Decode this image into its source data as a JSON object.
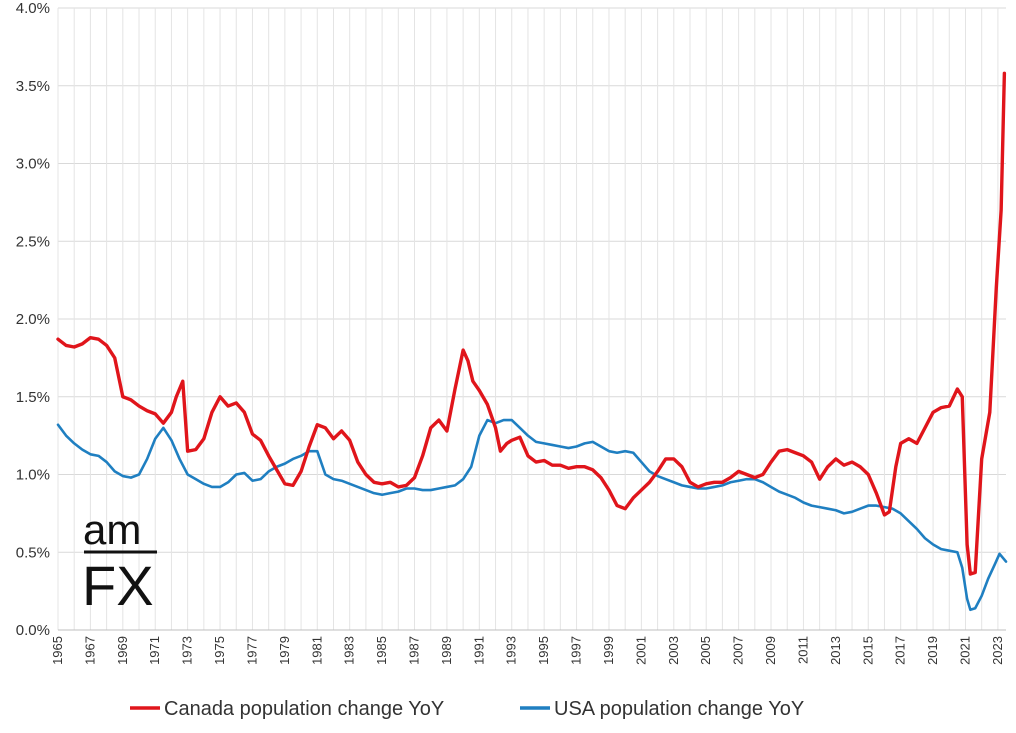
{
  "logo": {
    "top": "am",
    "bottom": "FX"
  },
  "chart_data": {
    "type": "line",
    "title": "",
    "xlabel": "",
    "ylabel": "",
    "xlim": [
      1965,
      2023.5
    ],
    "ylim": [
      0,
      4.0
    ],
    "yticks": [
      0,
      0.5,
      1.0,
      1.5,
      2.0,
      2.5,
      3.0,
      3.5,
      4.0
    ],
    "ytick_labels": [
      "0.0%",
      "0.5%",
      "1.0%",
      "1.5%",
      "2.0%",
      "2.5%",
      "3.0%",
      "3.5%",
      "4.0%"
    ],
    "xticks": [
      1965,
      1967,
      1969,
      1971,
      1973,
      1975,
      1977,
      1979,
      1981,
      1983,
      1985,
      1987,
      1989,
      1991,
      1993,
      1995,
      1997,
      1999,
      2001,
      2003,
      2005,
      2007,
      2009,
      2011,
      2013,
      2015,
      2017,
      2019,
      2021,
      2023
    ],
    "xtick_labels": [
      "1965",
      "1967",
      "1969",
      "1971",
      "1973",
      "1975",
      "1977",
      "1979",
      "1981",
      "1983",
      "1985",
      "1987",
      "1989",
      "1991",
      "1993",
      "1995",
      "1997",
      "1999",
      "2001",
      "2003",
      "2005",
      "2007",
      "2009",
      "2011",
      "2013",
      "2015",
      "2017",
      "2019",
      "2021",
      "2023"
    ],
    "grid": true,
    "legend_position": "bottom",
    "series": [
      {
        "name": "Canada population change YoY",
        "color": "#e0151b",
        "points": [
          [
            1965.0,
            1.87
          ],
          [
            1965.5,
            1.83
          ],
          [
            1966.0,
            1.82
          ],
          [
            1966.5,
            1.84
          ],
          [
            1967.0,
            1.88
          ],
          [
            1967.5,
            1.87
          ],
          [
            1968.0,
            1.83
          ],
          [
            1968.5,
            1.75
          ],
          [
            1969.0,
            1.5
          ],
          [
            1969.5,
            1.48
          ],
          [
            1970.0,
            1.44
          ],
          [
            1970.5,
            1.41
          ],
          [
            1971.0,
            1.39
          ],
          [
            1971.5,
            1.33
          ],
          [
            1972.0,
            1.4
          ],
          [
            1972.3,
            1.5
          ],
          [
            1972.7,
            1.6
          ],
          [
            1973.0,
            1.15
          ],
          [
            1973.5,
            1.16
          ],
          [
            1974.0,
            1.23
          ],
          [
            1974.5,
            1.4
          ],
          [
            1975.0,
            1.5
          ],
          [
            1975.5,
            1.44
          ],
          [
            1976.0,
            1.46
          ],
          [
            1976.5,
            1.4
          ],
          [
            1977.0,
            1.26
          ],
          [
            1977.5,
            1.22
          ],
          [
            1978.0,
            1.12
          ],
          [
            1978.5,
            1.03
          ],
          [
            1979.0,
            0.94
          ],
          [
            1979.5,
            0.93
          ],
          [
            1980.0,
            1.02
          ],
          [
            1980.5,
            1.18
          ],
          [
            1981.0,
            1.32
          ],
          [
            1981.5,
            1.3
          ],
          [
            1982.0,
            1.23
          ],
          [
            1982.5,
            1.28
          ],
          [
            1983.0,
            1.22
          ],
          [
            1983.5,
            1.08
          ],
          [
            1984.0,
            1.0
          ],
          [
            1984.5,
            0.95
          ],
          [
            1985.0,
            0.94
          ],
          [
            1985.5,
            0.95
          ],
          [
            1986.0,
            0.92
          ],
          [
            1986.5,
            0.93
          ],
          [
            1987.0,
            0.98
          ],
          [
            1987.5,
            1.12
          ],
          [
            1988.0,
            1.3
          ],
          [
            1988.5,
            1.35
          ],
          [
            1989.0,
            1.28
          ],
          [
            1989.5,
            1.55
          ],
          [
            1990.0,
            1.8
          ],
          [
            1990.3,
            1.73
          ],
          [
            1990.6,
            1.6
          ],
          [
            1991.0,
            1.54
          ],
          [
            1991.5,
            1.45
          ],
          [
            1992.0,
            1.3
          ],
          [
            1992.3,
            1.15
          ],
          [
            1992.7,
            1.2
          ],
          [
            1993.0,
            1.22
          ],
          [
            1993.5,
            1.24
          ],
          [
            1994.0,
            1.12
          ],
          [
            1994.5,
            1.08
          ],
          [
            1995.0,
            1.09
          ],
          [
            1995.5,
            1.06
          ],
          [
            1996.0,
            1.06
          ],
          [
            1996.5,
            1.04
          ],
          [
            1997.0,
            1.05
          ],
          [
            1997.5,
            1.05
          ],
          [
            1998.0,
            1.03
          ],
          [
            1998.5,
            0.98
          ],
          [
            1999.0,
            0.9
          ],
          [
            1999.5,
            0.8
          ],
          [
            2000.0,
            0.78
          ],
          [
            2000.5,
            0.85
          ],
          [
            2001.0,
            0.9
          ],
          [
            2001.5,
            0.95
          ],
          [
            2002.0,
            1.02
          ],
          [
            2002.5,
            1.1
          ],
          [
            2003.0,
            1.1
          ],
          [
            2003.5,
            1.05
          ],
          [
            2004.0,
            0.95
          ],
          [
            2004.5,
            0.92
          ],
          [
            2005.0,
            0.94
          ],
          [
            2005.5,
            0.95
          ],
          [
            2006.0,
            0.95
          ],
          [
            2006.5,
            0.98
          ],
          [
            2007.0,
            1.02
          ],
          [
            2007.5,
            1.0
          ],
          [
            2008.0,
            0.98
          ],
          [
            2008.5,
            1.0
          ],
          [
            2009.0,
            1.08
          ],
          [
            2009.5,
            1.15
          ],
          [
            2010.0,
            1.16
          ],
          [
            2010.5,
            1.14
          ],
          [
            2011.0,
            1.12
          ],
          [
            2011.5,
            1.08
          ],
          [
            2012.0,
            0.97
          ],
          [
            2012.5,
            1.05
          ],
          [
            2013.0,
            1.1
          ],
          [
            2013.5,
            1.06
          ],
          [
            2014.0,
            1.08
          ],
          [
            2014.5,
            1.05
          ],
          [
            2015.0,
            1.0
          ],
          [
            2015.5,
            0.88
          ],
          [
            2016.0,
            0.74
          ],
          [
            2016.3,
            0.76
          ],
          [
            2016.7,
            1.05
          ],
          [
            2017.0,
            1.2
          ],
          [
            2017.5,
            1.23
          ],
          [
            2018.0,
            1.2
          ],
          [
            2018.5,
            1.3
          ],
          [
            2019.0,
            1.4
          ],
          [
            2019.5,
            1.43
          ],
          [
            2020.0,
            1.44
          ],
          [
            2020.5,
            1.55
          ],
          [
            2020.8,
            1.5
          ],
          [
            2021.1,
            0.55
          ],
          [
            2021.3,
            0.36
          ],
          [
            2021.6,
            0.37
          ],
          [
            2022.0,
            1.1
          ],
          [
            2022.5,
            1.4
          ],
          [
            2022.9,
            2.2
          ],
          [
            2023.2,
            2.7
          ],
          [
            2023.4,
            3.58
          ]
        ]
      },
      {
        "name": "USA population change YoY",
        "color": "#1f7fc1",
        "points": [
          [
            1965.0,
            1.32
          ],
          [
            1965.5,
            1.25
          ],
          [
            1966.0,
            1.2
          ],
          [
            1966.5,
            1.16
          ],
          [
            1967.0,
            1.13
          ],
          [
            1967.5,
            1.12
          ],
          [
            1968.0,
            1.08
          ],
          [
            1968.5,
            1.02
          ],
          [
            1969.0,
            0.99
          ],
          [
            1969.5,
            0.98
          ],
          [
            1970.0,
            1.0
          ],
          [
            1970.5,
            1.1
          ],
          [
            1971.0,
            1.23
          ],
          [
            1971.5,
            1.3
          ],
          [
            1972.0,
            1.22
          ],
          [
            1972.5,
            1.1
          ],
          [
            1973.0,
            1.0
          ],
          [
            1973.5,
            0.97
          ],
          [
            1974.0,
            0.94
          ],
          [
            1974.5,
            0.92
          ],
          [
            1975.0,
            0.92
          ],
          [
            1975.5,
            0.95
          ],
          [
            1976.0,
            1.0
          ],
          [
            1976.5,
            1.01
          ],
          [
            1977.0,
            0.96
          ],
          [
            1977.5,
            0.97
          ],
          [
            1978.0,
            1.02
          ],
          [
            1978.5,
            1.05
          ],
          [
            1979.0,
            1.07
          ],
          [
            1979.5,
            1.1
          ],
          [
            1980.0,
            1.12
          ],
          [
            1980.5,
            1.15
          ],
          [
            1981.0,
            1.15
          ],
          [
            1981.5,
            1.0
          ],
          [
            1982.0,
            0.97
          ],
          [
            1982.5,
            0.96
          ],
          [
            1983.0,
            0.94
          ],
          [
            1983.5,
            0.92
          ],
          [
            1984.0,
            0.9
          ],
          [
            1984.5,
            0.88
          ],
          [
            1985.0,
            0.87
          ],
          [
            1985.5,
            0.88
          ],
          [
            1986.0,
            0.89
          ],
          [
            1986.5,
            0.91
          ],
          [
            1987.0,
            0.91
          ],
          [
            1987.5,
            0.9
          ],
          [
            1988.0,
            0.9
          ],
          [
            1988.5,
            0.91
          ],
          [
            1989.0,
            0.92
          ],
          [
            1989.5,
            0.93
          ],
          [
            1990.0,
            0.97
          ],
          [
            1990.5,
            1.05
          ],
          [
            1991.0,
            1.25
          ],
          [
            1991.5,
            1.35
          ],
          [
            1992.0,
            1.33
          ],
          [
            1992.5,
            1.35
          ],
          [
            1993.0,
            1.35
          ],
          [
            1993.5,
            1.3
          ],
          [
            1994.0,
            1.25
          ],
          [
            1994.5,
            1.21
          ],
          [
            1995.0,
            1.2
          ],
          [
            1995.5,
            1.19
          ],
          [
            1996.0,
            1.18
          ],
          [
            1996.5,
            1.17
          ],
          [
            1997.0,
            1.18
          ],
          [
            1997.5,
            1.2
          ],
          [
            1998.0,
            1.21
          ],
          [
            1998.5,
            1.18
          ],
          [
            1999.0,
            1.15
          ],
          [
            1999.5,
            1.14
          ],
          [
            2000.0,
            1.15
          ],
          [
            2000.5,
            1.14
          ],
          [
            2001.0,
            1.08
          ],
          [
            2001.5,
            1.02
          ],
          [
            2002.0,
            0.99
          ],
          [
            2002.5,
            0.97
          ],
          [
            2003.0,
            0.95
          ],
          [
            2003.5,
            0.93
          ],
          [
            2004.0,
            0.92
          ],
          [
            2004.5,
            0.91
          ],
          [
            2005.0,
            0.91
          ],
          [
            2005.5,
            0.92
          ],
          [
            2006.0,
            0.93
          ],
          [
            2006.5,
            0.95
          ],
          [
            2007.0,
            0.96
          ],
          [
            2007.5,
            0.97
          ],
          [
            2008.0,
            0.97
          ],
          [
            2008.5,
            0.95
          ],
          [
            2009.0,
            0.92
          ],
          [
            2009.5,
            0.89
          ],
          [
            2010.0,
            0.87
          ],
          [
            2010.5,
            0.85
          ],
          [
            2011.0,
            0.82
          ],
          [
            2011.5,
            0.8
          ],
          [
            2012.0,
            0.79
          ],
          [
            2012.5,
            0.78
          ],
          [
            2013.0,
            0.77
          ],
          [
            2013.5,
            0.75
          ],
          [
            2014.0,
            0.76
          ],
          [
            2014.5,
            0.78
          ],
          [
            2015.0,
            0.8
          ],
          [
            2015.5,
            0.8
          ],
          [
            2016.0,
            0.79
          ],
          [
            2016.5,
            0.78
          ],
          [
            2017.0,
            0.75
          ],
          [
            2017.5,
            0.7
          ],
          [
            2018.0,
            0.65
          ],
          [
            2018.5,
            0.59
          ],
          [
            2019.0,
            0.55
          ],
          [
            2019.5,
            0.52
          ],
          [
            2020.0,
            0.51
          ],
          [
            2020.5,
            0.5
          ],
          [
            2020.8,
            0.4
          ],
          [
            2021.1,
            0.2
          ],
          [
            2021.3,
            0.13
          ],
          [
            2021.6,
            0.14
          ],
          [
            2022.0,
            0.22
          ],
          [
            2022.4,
            0.33
          ],
          [
            2022.8,
            0.42
          ],
          [
            2023.1,
            0.49
          ],
          [
            2023.5,
            0.44
          ]
        ]
      }
    ]
  }
}
